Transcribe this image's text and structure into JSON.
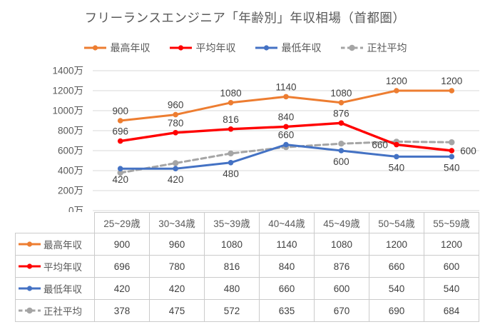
{
  "title": "フリーランスエンジニア「年齢別」年収相場（首都圏）",
  "axis": {
    "ytick_labels": [
      "0万",
      "200万",
      "400万",
      "600万",
      "800万",
      "1000万",
      "1200万",
      "1400万"
    ]
  },
  "chart_data": {
    "type": "line",
    "title": "フリーランスエンジニア「年齢別」年収相場（首都圏）",
    "categories": [
      "25~29歳",
      "30~34歳",
      "35~39歳",
      "40~44歳",
      "45~49歳",
      "50~54歳",
      "55~59歳"
    ],
    "series": [
      {
        "name": "最高年収",
        "color": "#ED7D31",
        "dashed": false,
        "values": [
          900,
          960,
          1080,
          1140,
          1080,
          1200,
          1200
        ],
        "label_positions": [
          "above",
          "above",
          "above",
          "above",
          "above",
          "above",
          "above"
        ]
      },
      {
        "name": "平均年収",
        "color": "#FF0000",
        "dashed": false,
        "values": [
          696,
          780,
          816,
          840,
          876,
          660,
          600
        ],
        "label_positions": [
          "above",
          "above",
          "above",
          "above",
          "above",
          "left",
          "right"
        ]
      },
      {
        "name": "最低年収",
        "color": "#4472C4",
        "dashed": false,
        "values": [
          420,
          420,
          480,
          660,
          600,
          540,
          540
        ],
        "label_positions": [
          "below",
          "below",
          "below",
          "above",
          "below",
          "below",
          "below"
        ]
      },
      {
        "name": "正社平均",
        "color": "#A5A5A5",
        "dashed": true,
        "values": [
          378,
          475,
          572,
          635,
          670,
          690,
          684
        ],
        "label_positions": [
          "none",
          "none",
          "none",
          "none",
          "none",
          "none",
          "none"
        ]
      }
    ],
    "ylim": [
      0,
      1400
    ],
    "ytick_step": 200,
    "yunit": "万",
    "grid": true,
    "legend_position": "top",
    "data_table_shown": true
  },
  "colors": {
    "background": "#FFFFFF",
    "gridline": "#D9D9D9",
    "axis_text": "#595959",
    "data_label_text": "#404040",
    "table_border": "#CBCBCB",
    "table_header_text": "#595959",
    "table_value_text": "#404040",
    "title_text": "#595959"
  }
}
